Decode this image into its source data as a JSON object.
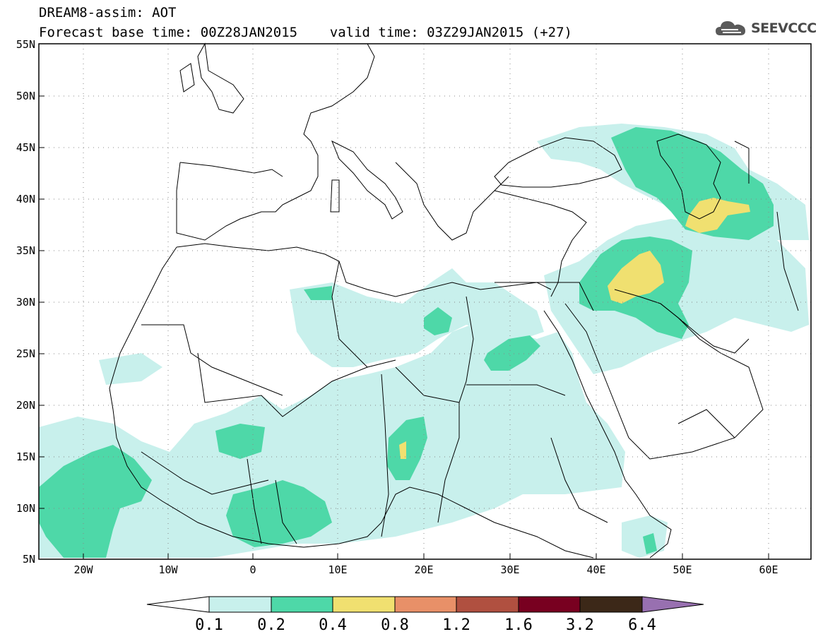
{
  "header": {
    "line1": "DREAM8-assim: AOT",
    "line2": "Forecast base time: 00Z28JAN2015    valid time: 03Z29JAN2015 (+27)"
  },
  "logo": {
    "icon": "cloud-icon",
    "text": "SEEVCCC"
  },
  "map": {
    "lon_range": [
      -25,
      65
    ],
    "lat_range": [
      5,
      55
    ],
    "lat_labels": [
      "55N",
      "50N",
      "45N",
      "40N",
      "35N",
      "30N",
      "25N",
      "20N",
      "15N",
      "10N",
      "5N"
    ],
    "lon_labels": [
      "20W",
      "10W",
      "0",
      "10E",
      "20E",
      "30E",
      "40E",
      "50E",
      "60E"
    ]
  },
  "colorbar": {
    "labels": [
      "0.1",
      "0.2",
      "0.4",
      "0.8",
      "1.2",
      "1.6",
      "3.2",
      "6.4"
    ],
    "colors": [
      "#ffffff",
      "#c8f0ec",
      "#4ed8a8",
      "#f0e070",
      "#e89068",
      "#b05040",
      "#780020",
      "#3c2818",
      "#9870b0"
    ]
  },
  "colors": {
    "aot_01_02": "#c8f0ec",
    "aot_02_04": "#4ed8a8",
    "aot_04_08": "#f0e070"
  }
}
